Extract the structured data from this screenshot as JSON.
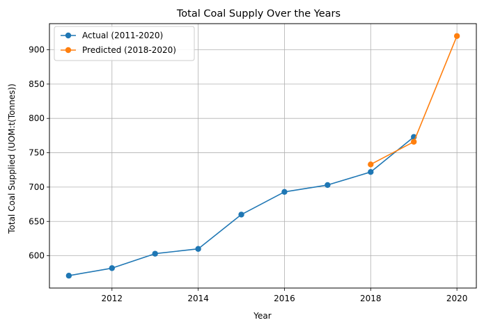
{
  "chart_data": {
    "type": "line",
    "title": "Total Coal Supply Over the Years",
    "xlabel": "Year",
    "ylabel": "Total Coal Supplied (UOM:t(Tonnes))",
    "xlim": [
      2010.55,
      2020.45
    ],
    "ylim": [
      553,
      938
    ],
    "xticks": [
      2012,
      2014,
      2016,
      2018,
      2020
    ],
    "yticks": [
      600,
      650,
      700,
      750,
      800,
      850,
      900
    ],
    "grid": true,
    "legend_position": "top-left",
    "series": [
      {
        "name": "Actual (2011-2020)",
        "color": "#1f77b4",
        "x": [
          2011,
          2012,
          2013,
          2014,
          2015,
          2016,
          2017,
          2018,
          2019
        ],
        "y": [
          571,
          582,
          603,
          610,
          660,
          693,
          703,
          722,
          773
        ]
      },
      {
        "name": "Predicted (2018-2020)",
        "color": "#ff7f0e",
        "x": [
          2018,
          2019,
          2020
        ],
        "y": [
          733,
          766,
          920
        ]
      }
    ]
  }
}
